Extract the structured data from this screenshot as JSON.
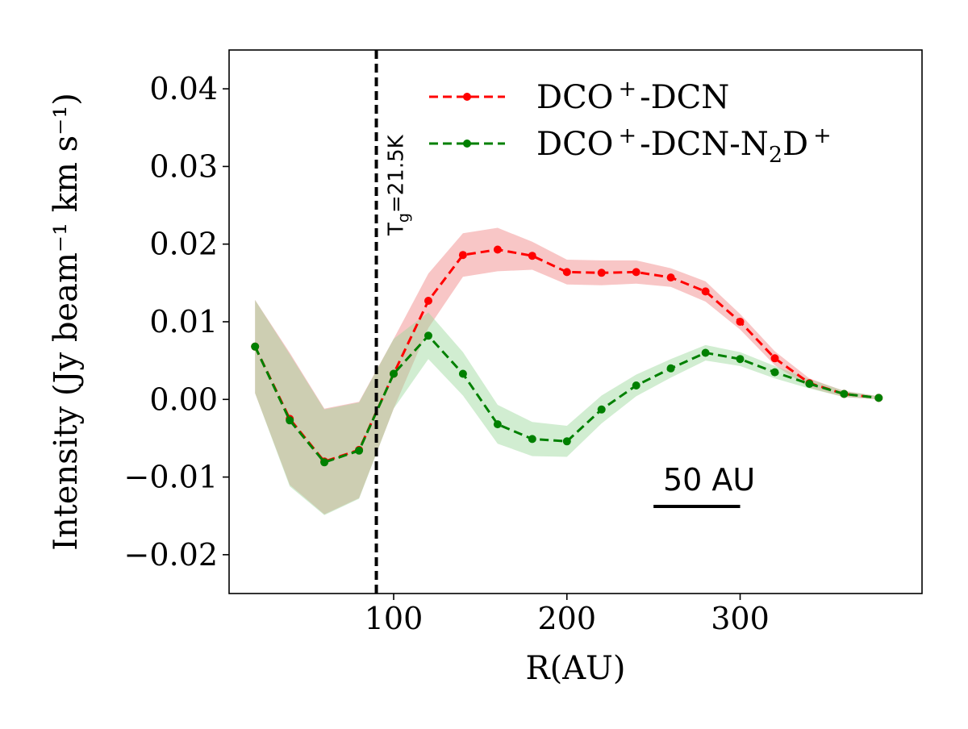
{
  "chart_data": {
    "type": "line",
    "xlabel": "R(AU)",
    "ylabel": "Intensity (Jy beam⁻¹ km s⁻¹)",
    "xlim": [
      5,
      405
    ],
    "ylim": [
      -0.025,
      0.045
    ],
    "xticks": [
      100,
      200,
      300
    ],
    "xtick_labels": [
      "100",
      "200",
      "300"
    ],
    "yticks": [
      -0.02,
      -0.01,
      0.0,
      0.01,
      0.02,
      0.03,
      0.04
    ],
    "ytick_labels": [
      "−0.02",
      "−0.01",
      "0.00",
      "0.01",
      "0.02",
      "0.03",
      "0.04"
    ],
    "legend_position": "top-right",
    "series": [
      {
        "name": "DCO⁺-DCN",
        "legend_parts": {
          "base": "DCO",
          "sup1": "+",
          "mid": "-DCN"
        },
        "color": "#ff0000",
        "band_color": "#f08080",
        "x": [
          20,
          40,
          60,
          80,
          100,
          120,
          140,
          160,
          180,
          200,
          220,
          240,
          260,
          280,
          300,
          320,
          340,
          360,
          380
        ],
        "y": [
          0.0068,
          -0.0025,
          -0.008,
          -0.0065,
          0.0033,
          0.0127,
          0.0186,
          0.0193,
          0.0185,
          0.0164,
          0.0163,
          0.0164,
          0.0157,
          0.0139,
          0.01,
          0.0053,
          0.0021,
          0.0007,
          0.0002
        ],
        "err": [
          0.006,
          0.0085,
          0.0068,
          0.0062,
          0.0045,
          0.0035,
          0.0028,
          0.0028,
          0.0018,
          0.0016,
          0.0016,
          0.0015,
          0.0012,
          0.0013,
          0.001,
          0.0009,
          0.0006,
          0.0004,
          0.0002
        ]
      },
      {
        "name": "DCO⁺-DCN-N₂D⁺",
        "legend_parts": {
          "base": "DCO",
          "sup1": "+",
          "mid": "-DCN-N",
          "sub": "2",
          "tail": "D",
          "sup2": "+"
        },
        "color": "#008000",
        "band_color": "#98d698",
        "x": [
          20,
          40,
          60,
          80,
          100,
          120,
          140,
          160,
          180,
          200,
          220,
          240,
          260,
          280,
          300,
          320,
          340,
          360,
          380
        ],
        "y": [
          0.0068,
          -0.0027,
          -0.0081,
          -0.0066,
          0.0033,
          0.0082,
          0.0033,
          -0.0032,
          -0.0051,
          -0.0054,
          -0.0013,
          0.0018,
          0.004,
          0.006,
          0.0052,
          0.0035,
          0.002,
          0.0007,
          0.0002
        ],
        "err": [
          0.006,
          0.0085,
          0.0068,
          0.0062,
          0.0045,
          0.003,
          0.0028,
          0.0025,
          0.0022,
          0.002,
          0.0018,
          0.0014,
          0.0012,
          0.001,
          0.0009,
          0.0008,
          0.0006,
          0.0004,
          0.0002
        ]
      }
    ],
    "vline": {
      "x": 90,
      "label_base": "T",
      "label_sub": "g",
      "label_tail": "=21.5K"
    },
    "scalebar": {
      "x_from": 250,
      "x_to": 300,
      "label": "50 AU"
    }
  }
}
